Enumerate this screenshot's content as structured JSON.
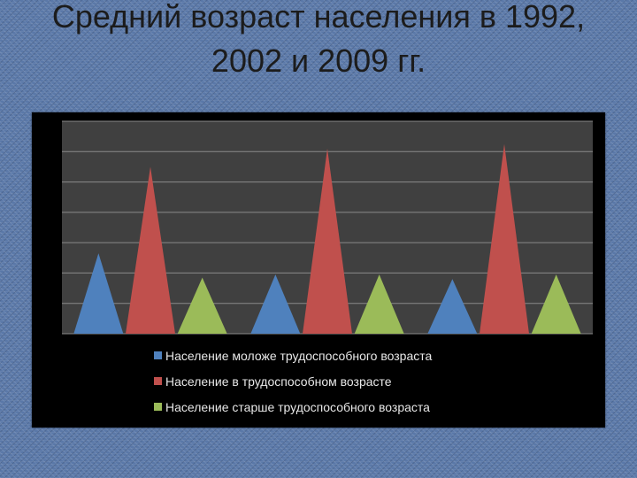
{
  "slide": {
    "title_line1": "Средний возраст населения в 1992,",
    "title_line2": "2002 и 2009 гг."
  },
  "chart_data": {
    "type": "bar",
    "bar_shape": "triangle",
    "groups": 3,
    "ylim": [
      0,
      7
    ],
    "gridlines": 7,
    "grid": true,
    "legend_position": "bottom",
    "series": [
      {
        "name": "Население моложе трудоспособного возраста",
        "color": "#4f81bd",
        "values": [
          2.65,
          1.95,
          1.8
        ]
      },
      {
        "name": "Население в трудоспособном возрасте",
        "color": "#c0504d",
        "values": [
          5.5,
          6.1,
          6.25
        ]
      },
      {
        "name": "Население старше трудоспособного возраста",
        "color": "#9bbb59",
        "values": [
          1.85,
          1.95,
          1.95
        ]
      }
    ]
  }
}
